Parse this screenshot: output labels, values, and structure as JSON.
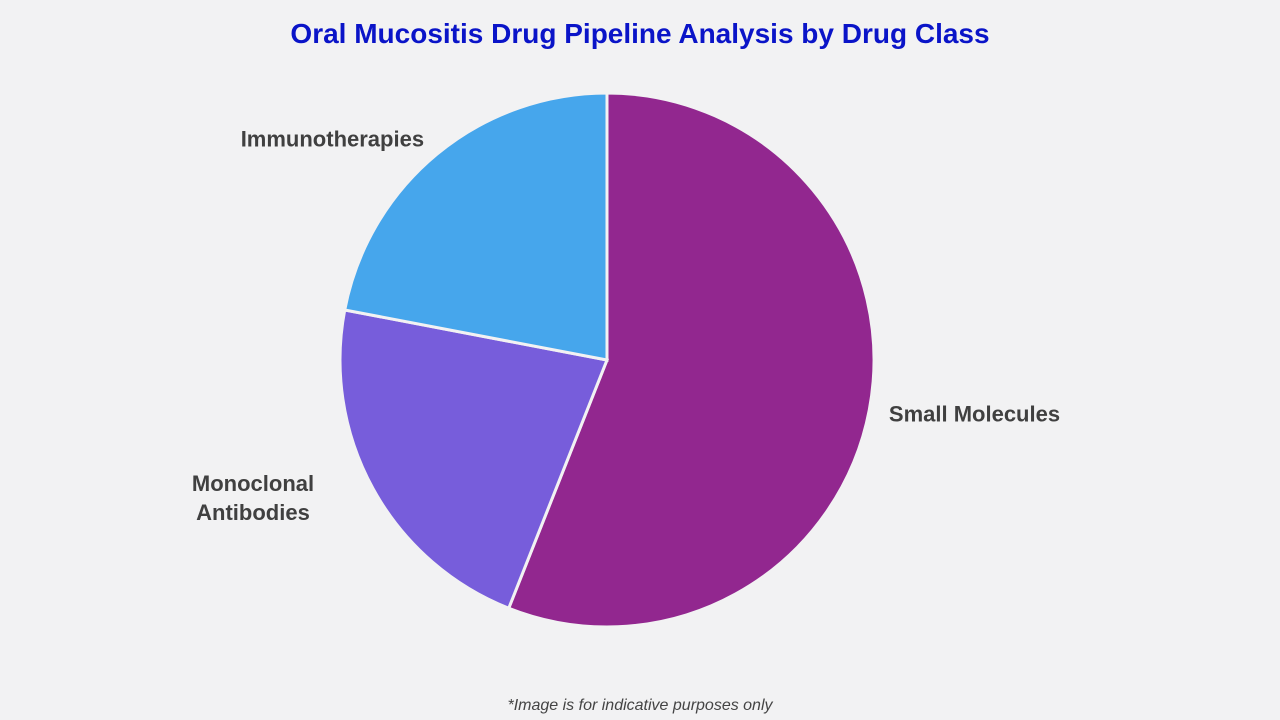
{
  "chart_data": {
    "type": "pie",
    "title": "Oral Mucositis Drug Pipeline Analysis by Drug Class",
    "categories": [
      "Small Molecules",
      "Monoclonal Antibodies",
      "Immunotherapies"
    ],
    "values": [
      56,
      22,
      22
    ],
    "colors": [
      "#92278f",
      "#775ddb",
      "#46a6ec"
    ],
    "note": "*Image is for indicative purposes only"
  }
}
